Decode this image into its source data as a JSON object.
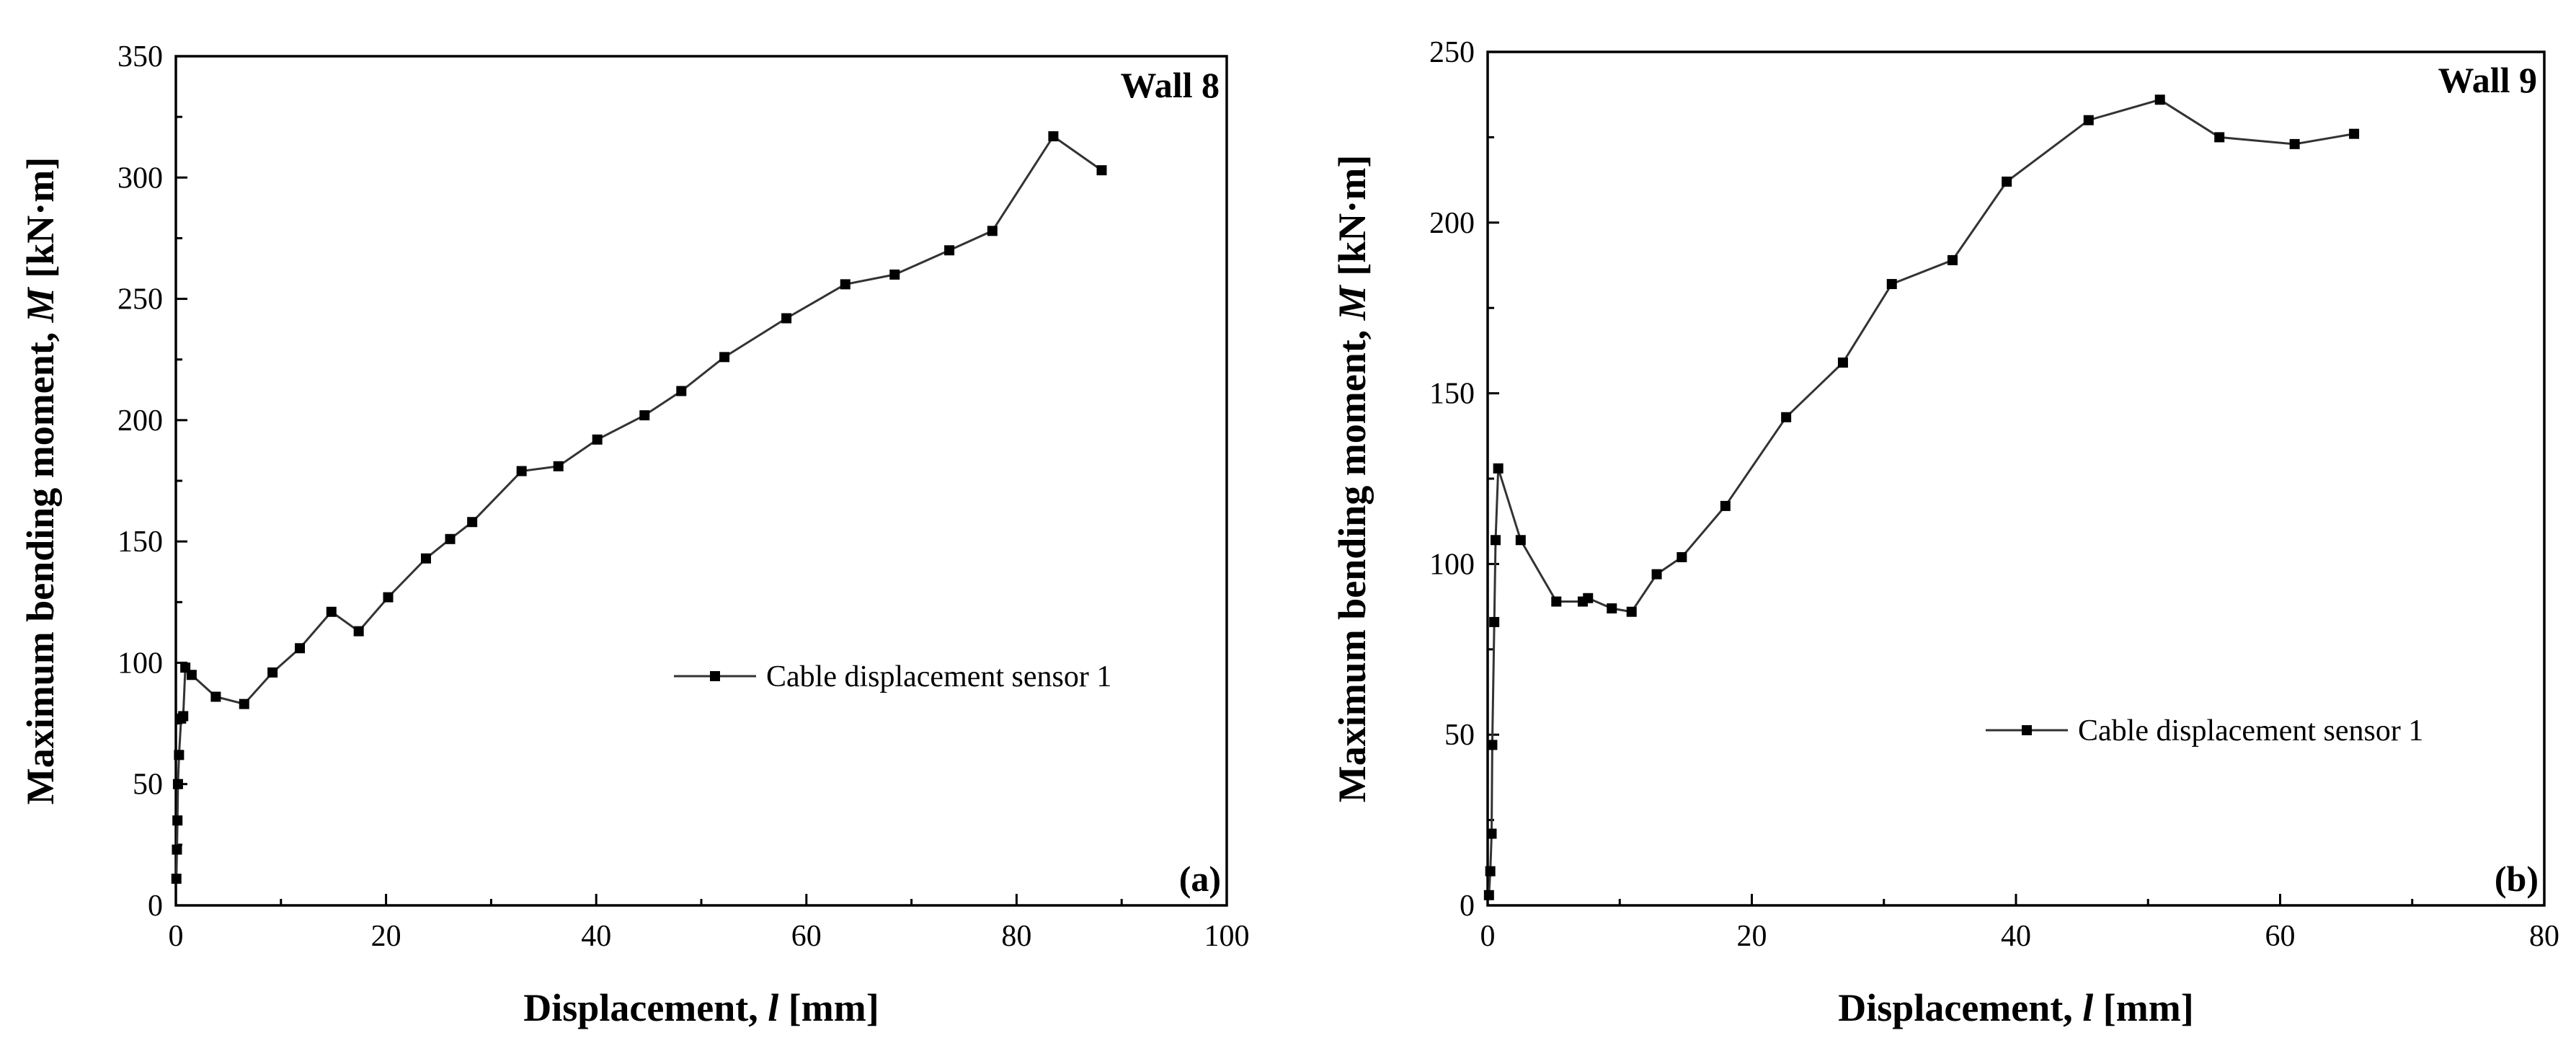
{
  "chart_data": [
    {
      "type": "line",
      "panel_label": "(a)",
      "title": "Wall 8",
      "xlabel": "Displacement, ",
      "xlabel_var": "l",
      "xlabel_unit": " [mm]",
      "ylabel": "Maximum bending moment, ",
      "ylabel_var": "M",
      "ylabel_unit": " [kN·m]",
      "xlim": [
        0,
        100
      ],
      "ylim": [
        0,
        350
      ],
      "xticks": [
        0,
        20,
        40,
        60,
        80,
        100
      ],
      "yticks": [
        0,
        50,
        100,
        150,
        200,
        250,
        300,
        350
      ],
      "grid": false,
      "legend_position": "center-right",
      "series": [
        {
          "name": "Cable displacement sensor 1",
          "x": [
            0.05,
            0.1,
            0.15,
            0.2,
            0.3,
            0.5,
            0.7,
            0.9,
            1.5,
            3.8,
            6.5,
            9.2,
            11.8,
            14.8,
            17.4,
            20.2,
            23.8,
            26.1,
            28.2,
            32.9,
            36.4,
            40.1,
            44.6,
            48.1,
            52.2,
            58.1,
            63.7,
            68.4,
            73.6,
            77.7,
            83.5,
            88.1
          ],
          "y": [
            11,
            23,
            35,
            50,
            62,
            77,
            78,
            98,
            95,
            86,
            83,
            96,
            106,
            121,
            113,
            127,
            143,
            151,
            158,
            179,
            181,
            192,
            202,
            212,
            226,
            242,
            256,
            260,
            270,
            278,
            317,
            303
          ]
        }
      ]
    },
    {
      "type": "line",
      "panel_label": "(b)",
      "title": "Wall 9",
      "xlabel": "Displacement, ",
      "xlabel_var": "l",
      "xlabel_unit": " [mm]",
      "ylabel": "Maximum bending moment, ",
      "ylabel_var": "M",
      "ylabel_unit": " [kN·m]",
      "xlim": [
        0,
        80
      ],
      "ylim": [
        0,
        250
      ],
      "xticks": [
        0,
        20,
        40,
        60,
        80
      ],
      "yticks": [
        0,
        50,
        100,
        150,
        200,
        250
      ],
      "grid": false,
      "legend_position": "lower-right",
      "series": [
        {
          "name": "Cable displacement sensor 1",
          "x": [
            0.1,
            0.2,
            0.3,
            0.35,
            0.5,
            0.6,
            0.8,
            2.5,
            5.2,
            7.2,
            7.6,
            9.4,
            10.9,
            12.8,
            14.7,
            18.0,
            22.6,
            26.9,
            30.6,
            35.2,
            39.3,
            45.5,
            50.9,
            55.4,
            61.1,
            65.6
          ],
          "y": [
            3,
            10,
            21,
            47,
            83,
            107,
            128,
            107,
            89,
            89,
            90,
            87,
            86,
            97,
            102,
            117,
            143,
            159,
            182,
            189,
            212,
            230,
            236,
            225,
            223,
            226
          ]
        }
      ]
    }
  ]
}
